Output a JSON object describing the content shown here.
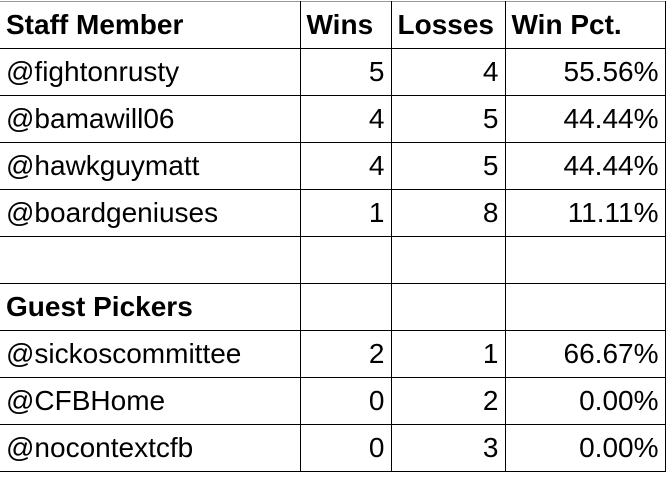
{
  "header": [
    "Staff Member",
    "Wins",
    "Losses",
    "Win Pct."
  ],
  "staff": [
    {
      "name": "@fightonrusty",
      "wins": "5",
      "losses": "4",
      "pct": "55.56%"
    },
    {
      "name": "@bamawill06",
      "wins": "4",
      "losses": "5",
      "pct": "44.44%"
    },
    {
      "name": "@hawkguymatt",
      "wins": "4",
      "losses": "5",
      "pct": "44.44%"
    },
    {
      "name": "@boardgeniuses",
      "wins": "1",
      "losses": "8",
      "pct": "11.11%"
    }
  ],
  "guest_header": "Guest Pickers",
  "guests": [
    {
      "name": "@sickoscommittee",
      "wins": "2",
      "losses": "1",
      "pct": "66.67%"
    },
    {
      "name": "@CFBHome",
      "wins": "0",
      "losses": "2",
      "pct": "0.00%"
    },
    {
      "name": "@nocontextcfb",
      "wins": "0",
      "losses": "3",
      "pct": "0.00%"
    }
  ]
}
